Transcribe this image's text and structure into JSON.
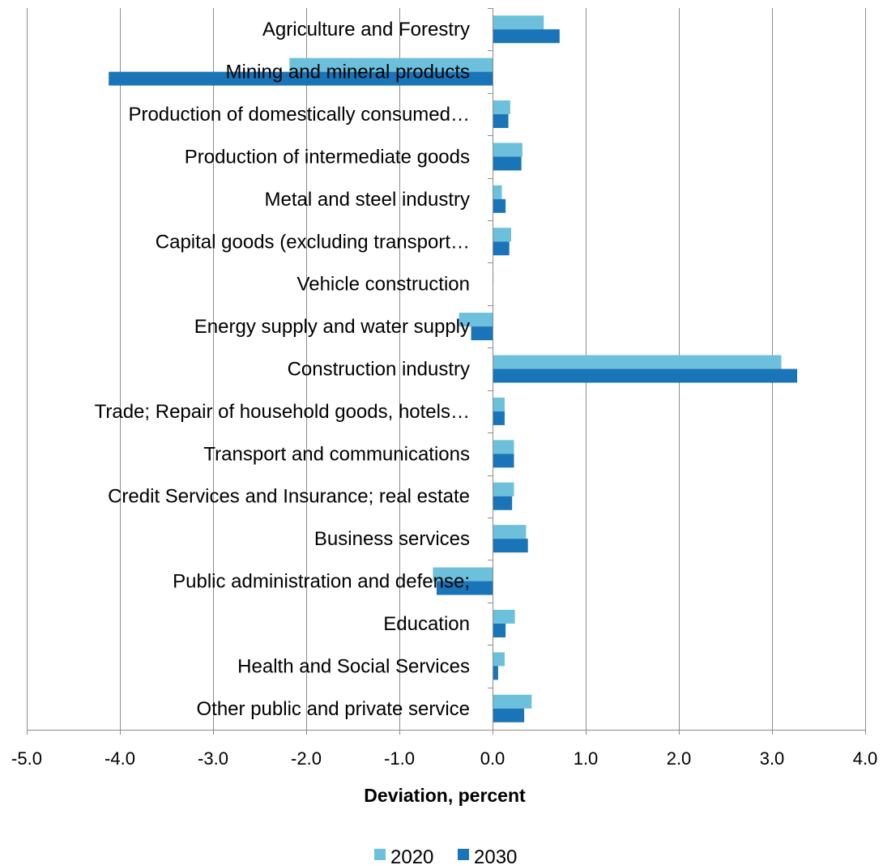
{
  "chart_data": {
    "type": "bar",
    "orientation": "horizontal",
    "title": "",
    "xlabel": "Deviation, percent",
    "ylabel": "",
    "xlim": [
      -5.0,
      4.0
    ],
    "xticks": [
      -5.0,
      -4.0,
      -3.0,
      -2.0,
      -1.0,
      0.0,
      1.0,
      2.0,
      3.0,
      4.0
    ],
    "xtick_labels": [
      "-5.0",
      "-4.0",
      "-3.0",
      "-2.0",
      "-1.0",
      "0.0",
      "1.0",
      "2.0",
      "3.0",
      "4.0"
    ],
    "grid": "vertical",
    "legend_position": "bottom",
    "categories": [
      "Agriculture and Forestry",
      "Mining and mineral products",
      "Production of domestically consumed…",
      "Production of intermediate goods",
      "Metal and steel industry",
      "Capital goods (excluding transport…",
      "Vehicle construction",
      "Energy supply and water supply",
      "Construction industry",
      "Trade; Repair of household goods, hotels…",
      "Transport and communications",
      "Credit Services and Insurance; real estate",
      "Business services",
      "Public administration and defense;",
      "Education",
      "Health and Social Services",
      "Other public and private service"
    ],
    "series": [
      {
        "name": "2020",
        "color": "#6cc0dc",
        "values": [
          0.55,
          -2.18,
          0.19,
          0.32,
          0.1,
          0.2,
          0.01,
          -0.36,
          3.1,
          0.13,
          0.23,
          0.23,
          0.36,
          -0.64,
          0.24,
          0.13,
          0.42
        ]
      },
      {
        "name": "2030",
        "color": "#1a75b8",
        "values": [
          0.72,
          -4.12,
          0.17,
          0.31,
          0.14,
          0.18,
          0.0,
          -0.23,
          3.27,
          0.13,
          0.23,
          0.21,
          0.38,
          -0.6,
          0.14,
          0.06,
          0.34
        ]
      }
    ]
  }
}
